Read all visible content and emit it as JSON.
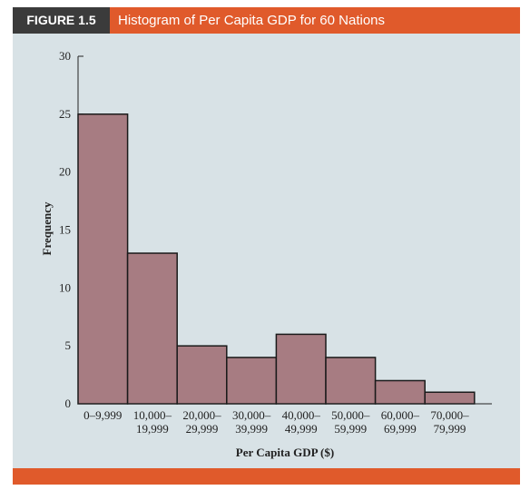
{
  "figure": {
    "tag": "FIGURE 1.5",
    "title": "Histogram of Per Capita GDP for 60 Nations"
  },
  "colors": {
    "header": "#e05a2b",
    "tag_bg": "#3b3b3b",
    "panel_bg": "#d8e2e6",
    "bar_fill": "#a77c82",
    "bar_stroke": "#1a1a1a"
  },
  "chart_data": {
    "type": "bar",
    "title": "",
    "xlabel": "Per Capita GDP ($)",
    "ylabel": "Frequency",
    "ylim": [
      0,
      30
    ],
    "yticks": [
      0,
      5,
      10,
      15,
      20,
      25,
      30
    ],
    "grid": false,
    "categories": [
      [
        "0–9,999"
      ],
      [
        "10,000–",
        "19,999"
      ],
      [
        "20,000–",
        "29,999"
      ],
      [
        "30,000–",
        "39,999"
      ],
      [
        "40,000–",
        "49,999"
      ],
      [
        "50,000–",
        "59,999"
      ],
      [
        "60,000–",
        "69,999"
      ],
      [
        "70,000–",
        "79,999"
      ]
    ],
    "values": [
      25,
      13,
      5,
      4,
      6,
      4,
      2,
      1
    ]
  }
}
